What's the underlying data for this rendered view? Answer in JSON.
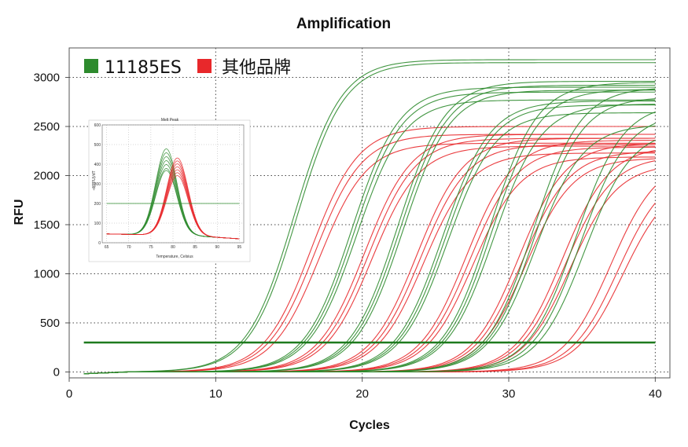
{
  "chart_data": [
    {
      "type": "line",
      "title": "Amplification",
      "xlabel": "Cycles",
      "ylabel": "RFU",
      "xlim": [
        0,
        41
      ],
      "ylim": [
        -60,
        3300
      ],
      "x_ticks": [
        0,
        10,
        20,
        30,
        40
      ],
      "y_ticks": [
        0,
        500,
        1000,
        1500,
        2000,
        2500,
        3000
      ],
      "grid": "dotted",
      "legend_position": "top-left",
      "threshold": 300,
      "x_start_cycle": 1,
      "x_end_cycle": 40,
      "series": [
        {
          "name": "11185ES",
          "color": "#2e8b2e",
          "curves": [
            {
              "ct": 11.7,
              "plateau": 3180
            },
            {
              "ct": 11.9,
              "plateau": 3150
            },
            {
              "ct": 15.8,
              "plateau": 2900
            },
            {
              "ct": 16.0,
              "plateau": 2850
            },
            {
              "ct": 16.2,
              "plateau": 2770
            },
            {
              "ct": 18.9,
              "plateau": 2960
            },
            {
              "ct": 19.1,
              "plateau": 2920
            },
            {
              "ct": 19.3,
              "plateau": 2870
            },
            {
              "ct": 22.1,
              "plateau": 2760
            },
            {
              "ct": 22.3,
              "plateau": 2720
            },
            {
              "ct": 22.5,
              "plateau": 2640
            },
            {
              "ct": 25.2,
              "plateau": 2950
            },
            {
              "ct": 25.4,
              "plateau": 2880
            },
            {
              "ct": 25.6,
              "plateau": 2730
            },
            {
              "ct": 28.2,
              "plateau": 2900
            },
            {
              "ct": 28.4,
              "plateau": 2800
            },
            {
              "ct": 28.6,
              "plateau": 2520
            },
            {
              "ct": 31.2,
              "plateau": 2740
            },
            {
              "ct": 31.6,
              "plateau": 2640
            },
            {
              "ct": 32.0,
              "plateau": 2480
            }
          ]
        },
        {
          "name": "其他品牌",
          "color": "#e8282b",
          "curves": [
            {
              "ct": 13.3,
              "plateau": 2500
            },
            {
              "ct": 13.6,
              "plateau": 2420
            },
            {
              "ct": 14.0,
              "plateau": 2330
            },
            {
              "ct": 17.0,
              "plateau": 2420
            },
            {
              "ct": 17.3,
              "plateau": 2380
            },
            {
              "ct": 17.6,
              "plateau": 2300
            },
            {
              "ct": 20.6,
              "plateau": 2380
            },
            {
              "ct": 20.9,
              "plateau": 2320
            },
            {
              "ct": 21.2,
              "plateau": 2230
            },
            {
              "ct": 24.0,
              "plateau": 2360
            },
            {
              "ct": 24.3,
              "plateau": 2290
            },
            {
              "ct": 24.6,
              "plateau": 2190
            },
            {
              "ct": 27.6,
              "plateau": 2330
            },
            {
              "ct": 27.9,
              "plateau": 2250
            },
            {
              "ct": 28.2,
              "plateau": 2180
            },
            {
              "ct": 30.6,
              "plateau": 2300
            },
            {
              "ct": 30.9,
              "plateau": 2200
            },
            {
              "ct": 31.3,
              "plateau": 2120
            },
            {
              "ct": 34.0,
              "plateau": 2180
            },
            {
              "ct": 34.6,
              "plateau": 2080
            },
            {
              "ct": 35.0,
              "plateau": 1980
            }
          ]
        }
      ]
    },
    {
      "type": "line",
      "title": "Melt Peak",
      "xlabel": "Temperature, Celsius",
      "ylabel": "-d(RFU)/dT",
      "xlim": [
        64,
        96
      ],
      "ylim": [
        0,
        600
      ],
      "x_ticks": [
        65,
        70,
        75,
        80,
        85,
        90,
        95
      ],
      "y_ticks": [
        0,
        100,
        200,
        300,
        400,
        500,
        600
      ],
      "threshold": 200,
      "series": [
        {
          "name": "11185ES",
          "color": "#2e8b2e",
          "peak_temp": 78.5,
          "peaks": [
            480,
            460,
            440,
            420,
            400,
            380,
            370
          ]
        },
        {
          "name": "其他品牌",
          "color": "#e8282b",
          "peak_temp": 81.0,
          "peaks": [
            435,
            420,
            405,
            390,
            375,
            360,
            345
          ]
        }
      ]
    }
  ]
}
